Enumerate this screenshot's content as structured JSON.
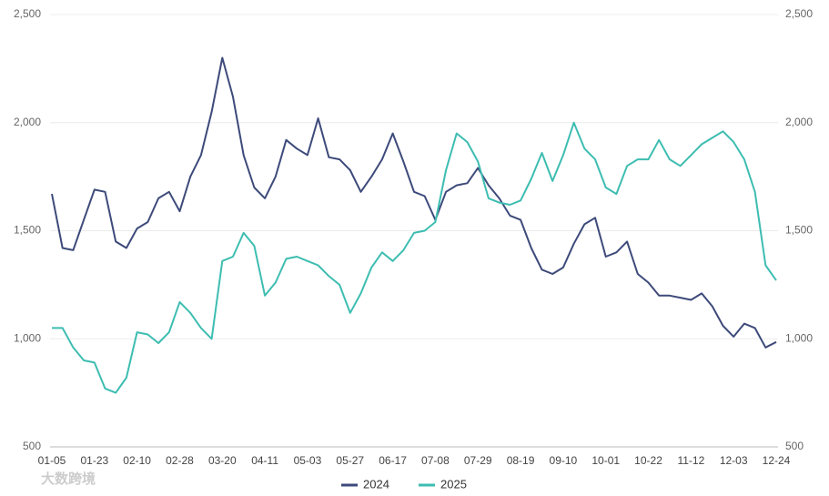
{
  "chart_data": {
    "type": "line",
    "watermark": "大数跨境",
    "categories": [
      "01-05",
      null,
      null,
      null,
      "01-23",
      null,
      null,
      null,
      "02-10",
      null,
      null,
      null,
      "02-28",
      null,
      null,
      null,
      "03-20",
      null,
      null,
      null,
      "04-11",
      null,
      null,
      null,
      "05-03",
      null,
      null,
      null,
      "05-27",
      null,
      null,
      null,
      "06-17",
      null,
      null,
      null,
      "07-08",
      null,
      null,
      null,
      "07-29",
      null,
      null,
      null,
      "08-19",
      null,
      null,
      null,
      "09-10",
      null,
      null,
      null,
      "10-01",
      null,
      null,
      null,
      "10-22",
      null,
      null,
      null,
      "11-12",
      null,
      null,
      null,
      "12-03",
      null,
      null,
      null,
      "12-24"
    ],
    "series": [
      {
        "name": "2024",
        "color": "#3d4a7a",
        "axis": "y",
        "values": [
          1670,
          1420,
          1410,
          1550,
          1690,
          1680,
          1450,
          1420,
          1510,
          1540,
          1650,
          1680,
          1590,
          1750,
          1850,
          2050,
          2300,
          2120,
          1850,
          1700,
          1650,
          1750,
          1920,
          1880,
          1850,
          2020,
          1840,
          1830,
          1780,
          1680,
          1750,
          1830,
          1950,
          1820,
          1680,
          1660,
          1550,
          1680,
          1710,
          1720,
          1790,
          1710,
          1650,
          1570,
          1550,
          1420,
          1320,
          1300,
          1330,
          1440,
          1530,
          1560,
          1380,
          1400,
          1450,
          1300,
          1260,
          1200,
          1200,
          1190,
          1180,
          1210,
          1150,
          1060,
          1010,
          1070,
          1050,
          960,
          985
        ]
      },
      {
        "name": "2025",
        "color": "#3dbdb1",
        "axis": "y2",
        "values": [
          1050,
          1050,
          960,
          900,
          890,
          770,
          750,
          820,
          1030,
          1020,
          980,
          1030,
          1170,
          1120,
          1050,
          1000,
          1360,
          1380,
          1490,
          1430,
          1200,
          1260,
          1370,
          1380,
          1360,
          1340,
          1290,
          1250,
          1120,
          1210,
          1330,
          1400,
          1360,
          1410,
          1490,
          1500,
          1540,
          1780,
          1950,
          1910,
          1820,
          1650,
          1630,
          1620,
          1640,
          1740,
          1860,
          1730,
          1850,
          2000,
          1880,
          1830,
          1700,
          1670,
          1800,
          1830,
          1830,
          1920,
          1830,
          1800,
          1850,
          1900,
          1930,
          1960,
          1910,
          1830,
          1680,
          1340,
          1270
        ]
      }
    ],
    "ylim": [
      500,
      2500
    ],
    "yticks": [
      500,
      {
        "value": 1000,
        "label": "1,000"
      },
      {
        "value": 1500,
        "label": "1,500"
      },
      {
        "value": 2000,
        "label": "2,000"
      },
      {
        "value": 2500,
        "label": "2,500"
      }
    ],
    "y2lim": [
      500,
      2500
    ],
    "y2ticks": [
      500,
      {
        "value": 1000,
        "label": "1,000"
      },
      {
        "value": 1500,
        "label": "1,500"
      },
      {
        "value": 2000,
        "label": "2,000"
      },
      {
        "value": 2500,
        "label": "2,500"
      }
    ],
    "grid": true,
    "legend": "bottom"
  }
}
